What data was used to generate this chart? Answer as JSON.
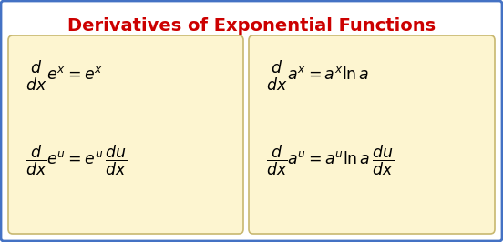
{
  "title": "Derivatives of Exponential Functions",
  "title_color": "#cc0000",
  "title_fontsize": 14,
  "background_color": "#ffffff",
  "box_color": "#fdf5d0",
  "box_edge_color": "#c8b870",
  "outer_border_color": "#4472c4",
  "formula_color": "#000000",
  "formula_fontsize": 12.5,
  "left_top_formula": "$\\dfrac{d}{dx}e^x = e^x$",
  "left_bot_formula": "$\\dfrac{d}{dx}e^u = e^u\\,\\dfrac{du}{dx}$",
  "right_top_formula": "$\\dfrac{d}{dx}a^x = a^x \\ln a$",
  "right_bot_formula": "$\\dfrac{d}{dx}a^u = a^u \\ln a\\,\\dfrac{du}{dx}$"
}
